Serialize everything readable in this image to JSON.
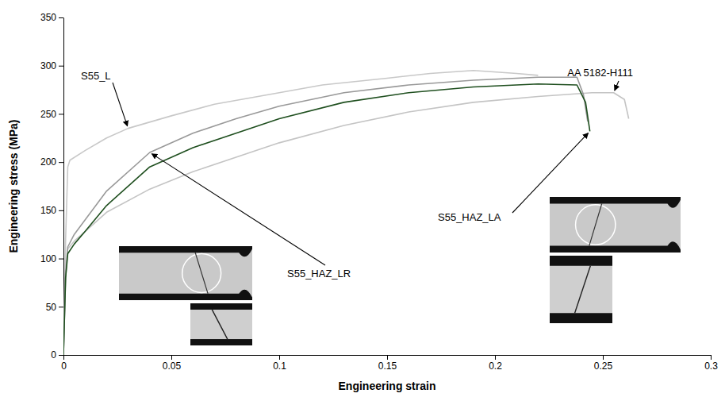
{
  "chart_data": {
    "type": "line",
    "x_label": "Engineering strain",
    "y_label": "Engineering stress (MPa)",
    "xlim": [
      0,
      0.3
    ],
    "xticks": [
      0,
      0.05,
      0.1,
      0.15,
      0.2,
      0.25,
      0.3
    ],
    "ylim": [
      0,
      350
    ],
    "yticks": [
      0,
      50,
      100,
      150,
      200,
      250,
      300,
      350
    ],
    "grid": false,
    "series": [
      {
        "name": "S55_L",
        "color": "#c8c8c8",
        "x": [
          0,
          0.001,
          0.002,
          0.003,
          0.01,
          0.02,
          0.03,
          0.05,
          0.07,
          0.1,
          0.12,
          0.15,
          0.17,
          0.19,
          0.21,
          0.22
        ],
        "values": [
          0,
          120,
          195,
          202,
          212,
          225,
          235,
          248,
          260,
          272,
          280,
          287,
          292,
          295,
          292,
          290
        ]
      },
      {
        "name": "AA 5182-H111",
        "color": "#c4c4c4",
        "x": [
          0,
          0.001,
          0.002,
          0.005,
          0.01,
          0.02,
          0.04,
          0.06,
          0.08,
          0.1,
          0.13,
          0.16,
          0.19,
          0.22,
          0.245,
          0.255,
          0.26,
          0.262
        ],
        "values": [
          0,
          80,
          110,
          118,
          128,
          148,
          172,
          190,
          205,
          220,
          238,
          252,
          262,
          268,
          272,
          272,
          265,
          245
        ]
      },
      {
        "name": "S55_HAZ_LR",
        "color": "#999999",
        "x": [
          0,
          0.001,
          0.002,
          0.005,
          0.01,
          0.02,
          0.04,
          0.06,
          0.08,
          0.1,
          0.13,
          0.16,
          0.19,
          0.22,
          0.238,
          0.241,
          0.243
        ],
        "values": [
          0,
          85,
          112,
          125,
          140,
          170,
          210,
          230,
          245,
          258,
          272,
          280,
          285,
          288,
          288,
          270,
          242
        ]
      },
      {
        "name": "S55_HAZ_LA",
        "color": "#1f4f1f",
        "x": [
          0,
          0.001,
          0.002,
          0.005,
          0.01,
          0.02,
          0.04,
          0.06,
          0.08,
          0.1,
          0.13,
          0.16,
          0.19,
          0.22,
          0.238,
          0.242,
          0.244
        ],
        "values": [
          0,
          80,
          105,
          115,
          128,
          155,
          195,
          215,
          230,
          245,
          262,
          272,
          278,
          281,
          280,
          262,
          232
        ]
      }
    ]
  }
}
